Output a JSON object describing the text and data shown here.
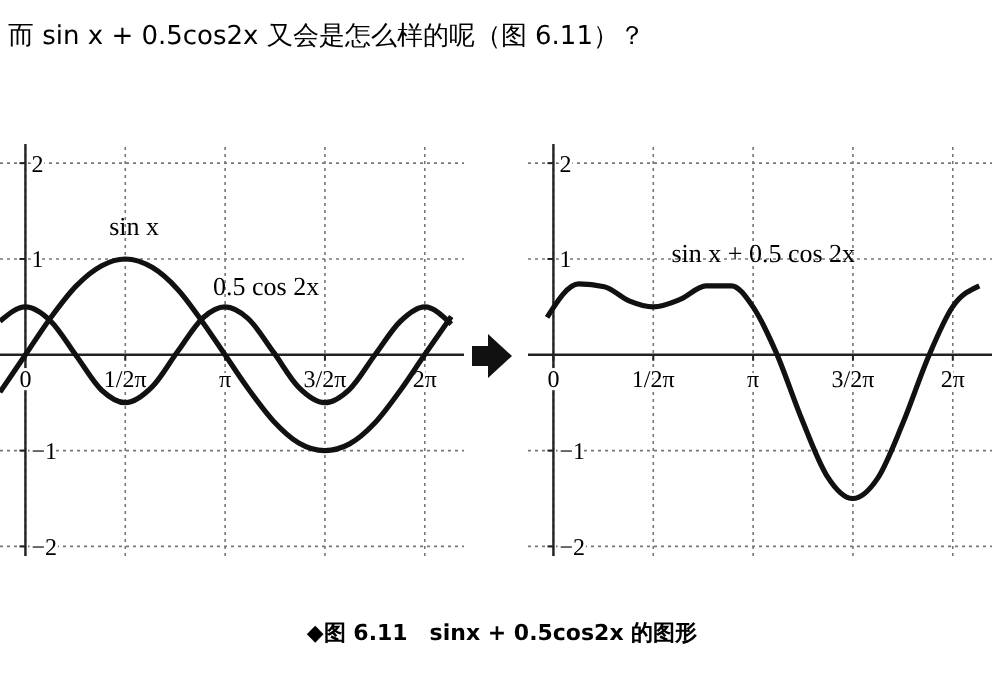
{
  "chart_data": [
    {
      "type": "line",
      "title": "而 sin x + 0.5cos2x 又会是怎么样的呢（图 6.11）？",
      "x": [
        -0.4,
        0,
        0.4,
        0.8,
        1.2,
        1.57,
        2.0,
        2.4,
        2.8,
        3.14,
        3.5,
        3.9,
        4.3,
        4.71,
        5.1,
        5.5,
        5.9,
        6.28,
        6.7
      ],
      "series": [
        {
          "name": "sin x",
          "color": "#111111",
          "values": [
            -0.39,
            0,
            0.39,
            0.72,
            0.93,
            1,
            0.91,
            0.68,
            0.33,
            0,
            -0.35,
            -0.69,
            -0.92,
            -1,
            -0.93,
            -0.71,
            -0.37,
            0,
            0.4
          ]
        },
        {
          "name": "0.5 cos 2x",
          "color": "#111111",
          "values": [
            0.35,
            0.5,
            0.35,
            -0.01,
            -0.37,
            -0.5,
            -0.33,
            0.04,
            0.39,
            0.5,
            0.38,
            0.03,
            -0.34,
            -0.5,
            -0.36,
            0,
            0.35,
            0.5,
            0.32
          ]
        }
      ],
      "xlim": [
        -0.4,
        6.9
      ],
      "ylim": [
        -2.1,
        2.2
      ],
      "xticks": [
        {
          "value": 0,
          "label": "0"
        },
        {
          "value": 1.571,
          "label": "1/2π"
        },
        {
          "value": 3.142,
          "label": "π"
        },
        {
          "value": 4.712,
          "label": "3/2π"
        },
        {
          "value": 6.283,
          "label": "2π"
        }
      ],
      "yticks": [
        {
          "value": -2,
          "label": "−2"
        },
        {
          "value": -1,
          "label": "−1"
        },
        {
          "value": 1,
          "label": "1"
        },
        {
          "value": 2,
          "label": "2"
        }
      ],
      "grid": true,
      "line_style": "solid"
    },
    {
      "type": "line",
      "x": [
        -0.1,
        0.4,
        0.8,
        1.2,
        1.57,
        2.0,
        2.4,
        2.8,
        3.14,
        3.5,
        3.9,
        4.3,
        4.71,
        5.1,
        5.5,
        5.9,
        6.28,
        6.7
      ],
      "series": [
        {
          "name": "sin x + 0.5 cos 2x",
          "color": "#111111",
          "values": [
            0.39,
            0.74,
            0.71,
            0.56,
            0.5,
            0.58,
            0.72,
            0.72,
            0.5,
            0.03,
            -0.66,
            -1.26,
            -1.5,
            -1.29,
            -0.71,
            -0.02,
            0.5,
            0.72
          ]
        }
      ],
      "xlim": [
        -0.4,
        6.9
      ],
      "ylim": [
        -2.1,
        2.2
      ],
      "xticks": [
        {
          "value": 0,
          "label": "0"
        },
        {
          "value": 1.571,
          "label": "1/2π"
        },
        {
          "value": 3.142,
          "label": "π"
        },
        {
          "value": 4.712,
          "label": "3/2π"
        },
        {
          "value": 6.283,
          "label": "2π"
        }
      ],
      "yticks": [
        {
          "value": -2,
          "label": "−2"
        },
        {
          "value": -1,
          "label": "−1"
        },
        {
          "value": 1,
          "label": "1"
        },
        {
          "value": 2,
          "label": "2"
        }
      ],
      "grid": true,
      "line_style": "solid",
      "annotations": [
        "◆图 6.11　sinx + 0.5cos2x 的图形"
      ]
    }
  ]
}
